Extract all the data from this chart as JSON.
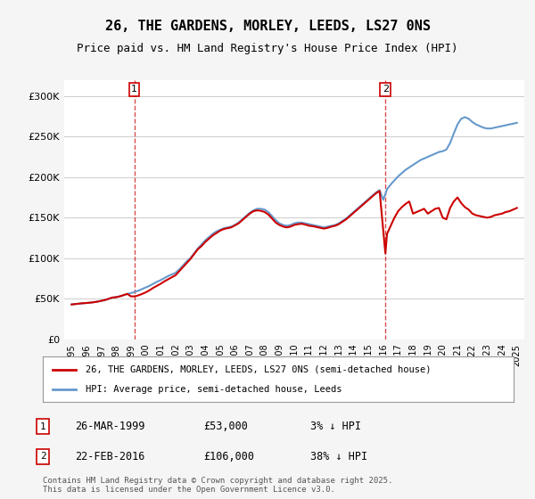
{
  "title": "26, THE GARDENS, MORLEY, LEEDS, LS27 0NS",
  "subtitle": "Price paid vs. HM Land Registry's House Price Index (HPI)",
  "xlabel": "",
  "ylabel": "",
  "ylim": [
    0,
    320000
  ],
  "yticks": [
    0,
    50000,
    100000,
    150000,
    200000,
    250000,
    300000
  ],
  "ytick_labels": [
    "£0",
    "£50K",
    "£100K",
    "£150K",
    "£200K",
    "£250K",
    "£300K"
  ],
  "xlim_start": 1994.5,
  "xlim_end": 2025.5,
  "xticks": [
    1995,
    1996,
    1997,
    1998,
    1999,
    2000,
    2001,
    2002,
    2003,
    2004,
    2005,
    2006,
    2007,
    2008,
    2009,
    2010,
    2011,
    2012,
    2013,
    2014,
    2015,
    2016,
    2017,
    2018,
    2019,
    2020,
    2021,
    2022,
    2023,
    2024,
    2025
  ],
  "property_color": "#cc0000",
  "hpi_color": "#6699cc",
  "marker1_year": 1999.23,
  "marker1_price": 53000,
  "marker2_year": 2016.14,
  "marker2_price": 106000,
  "legend_property": "26, THE GARDENS, MORLEY, LEEDS, LS27 0NS (semi-detached house)",
  "legend_hpi": "HPI: Average price, semi-detached house, Leeds",
  "note1_label": "1",
  "note1_date": "26-MAR-1999",
  "note1_price": "£53,000",
  "note1_hpi": "3% ↓ HPI",
  "note2_label": "2",
  "note2_date": "22-FEB-2016",
  "note2_price": "£106,000",
  "note2_hpi": "38% ↓ HPI",
  "footer": "Contains HM Land Registry data © Crown copyright and database right 2025.\nThis data is licensed under the Open Government Licence v3.0.",
  "background_color": "#f5f5f5",
  "plot_background": "#ffffff",
  "hpi_data_x": [
    1995.0,
    1995.25,
    1995.5,
    1995.75,
    1996.0,
    1996.25,
    1996.5,
    1996.75,
    1997.0,
    1997.25,
    1997.5,
    1997.75,
    1998.0,
    1998.25,
    1998.5,
    1998.75,
    1999.0,
    1999.25,
    1999.5,
    1999.75,
    2000.0,
    2000.25,
    2000.5,
    2000.75,
    2001.0,
    2001.25,
    2001.5,
    2001.75,
    2002.0,
    2002.25,
    2002.5,
    2002.75,
    2003.0,
    2003.25,
    2003.5,
    2003.75,
    2004.0,
    2004.25,
    2004.5,
    2004.75,
    2005.0,
    2005.25,
    2005.5,
    2005.75,
    2006.0,
    2006.25,
    2006.5,
    2006.75,
    2007.0,
    2007.25,
    2007.5,
    2007.75,
    2008.0,
    2008.25,
    2008.5,
    2008.75,
    2009.0,
    2009.25,
    2009.5,
    2009.75,
    2010.0,
    2010.25,
    2010.5,
    2010.75,
    2011.0,
    2011.25,
    2011.5,
    2011.75,
    2012.0,
    2012.25,
    2012.5,
    2012.75,
    2013.0,
    2013.25,
    2013.5,
    2013.75,
    2014.0,
    2014.25,
    2014.5,
    2014.75,
    2015.0,
    2015.25,
    2015.5,
    2015.75,
    2016.0,
    2016.25,
    2016.5,
    2016.75,
    2017.0,
    2017.25,
    2017.5,
    2017.75,
    2018.0,
    2018.25,
    2018.5,
    2018.75,
    2019.0,
    2019.25,
    2019.5,
    2019.75,
    2020.0,
    2020.25,
    2020.5,
    2020.75,
    2021.0,
    2021.25,
    2021.5,
    2021.75,
    2022.0,
    2022.25,
    2022.5,
    2022.75,
    2023.0,
    2023.25,
    2023.5,
    2023.75,
    2024.0,
    2024.25,
    2024.5,
    2024.75,
    2025.0
  ],
  "hpi_data_y": [
    43000,
    43500,
    44000,
    44500,
    44800,
    45200,
    45800,
    46500,
    47500,
    48500,
    50000,
    51500,
    52000,
    53000,
    54500,
    56000,
    57000,
    58500,
    60000,
    62000,
    64000,
    66000,
    68500,
    71000,
    73000,
    75500,
    78000,
    80000,
    82000,
    86000,
    91000,
    96000,
    100000,
    106000,
    112000,
    117000,
    122000,
    126000,
    130000,
    133000,
    135000,
    137000,
    138000,
    139000,
    141000,
    144000,
    148000,
    152000,
    156000,
    159000,
    161000,
    161000,
    160000,
    157000,
    152000,
    147000,
    143000,
    141000,
    140000,
    141000,
    143000,
    144000,
    144000,
    143000,
    142000,
    141000,
    140000,
    139000,
    138000,
    139000,
    140000,
    141000,
    143000,
    146000,
    149000,
    153000,
    157000,
    161000,
    165000,
    169000,
    173000,
    177000,
    181000,
    184000,
    172000,
    185000,
    191000,
    196000,
    201000,
    205000,
    209000,
    212000,
    215000,
    218000,
    221000,
    223000,
    225000,
    227000,
    229000,
    231000,
    232000,
    234000,
    242000,
    254000,
    265000,
    272000,
    274000,
    272000,
    268000,
    265000,
    263000,
    261000,
    260000,
    260000,
    261000,
    262000,
    263000,
    264000,
    265000,
    266000,
    267000
  ],
  "property_data_x": [
    1995.0,
    1995.25,
    1995.5,
    1995.75,
    1996.0,
    1996.25,
    1996.5,
    1996.75,
    1997.0,
    1997.25,
    1997.5,
    1997.75,
    1998.0,
    1998.25,
    1998.5,
    1998.75,
    1999.0,
    1999.25,
    1999.5,
    1999.75,
    2000.0,
    2000.25,
    2000.5,
    2000.75,
    2001.0,
    2001.25,
    2001.5,
    2001.75,
    2002.0,
    2002.25,
    2002.5,
    2002.75,
    2003.0,
    2003.25,
    2003.5,
    2003.75,
    2004.0,
    2004.25,
    2004.5,
    2004.75,
    2005.0,
    2005.25,
    2005.5,
    2005.75,
    2006.0,
    2006.25,
    2006.5,
    2006.75,
    2007.0,
    2007.25,
    2007.5,
    2007.75,
    2008.0,
    2008.25,
    2008.5,
    2008.75,
    2009.0,
    2009.25,
    2009.5,
    2009.75,
    2010.0,
    2010.25,
    2010.5,
    2010.75,
    2011.0,
    2011.25,
    2011.5,
    2011.75,
    2012.0,
    2012.25,
    2012.5,
    2012.75,
    2013.0,
    2013.25,
    2013.5,
    2013.75,
    2014.0,
    2014.25,
    2014.5,
    2014.75,
    2015.0,
    2015.25,
    2015.5,
    2015.75,
    2016.14,
    2016.25,
    2016.5,
    2016.75,
    2017.0,
    2017.25,
    2017.5,
    2017.75,
    2018.0,
    2018.25,
    2018.5,
    2018.75,
    2019.0,
    2019.25,
    2019.5,
    2019.75,
    2020.0,
    2020.25,
    2020.5,
    2020.75,
    2021.0,
    2021.25,
    2021.5,
    2021.75,
    2022.0,
    2022.25,
    2022.5,
    2022.75,
    2023.0,
    2023.25,
    2023.5,
    2023.75,
    2024.0,
    2024.25,
    2024.5,
    2024.75,
    2025.0
  ],
  "property_data_y": [
    43000,
    43500,
    44000,
    44500,
    44800,
    45200,
    45800,
    46500,
    47500,
    48500,
    50000,
    51500,
    52000,
    53000,
    54500,
    56000,
    53000,
    53000,
    54200,
    56000,
    58000,
    60500,
    63500,
    66000,
    68500,
    71500,
    74000,
    76500,
    79000,
    84000,
    89000,
    94000,
    99000,
    105000,
    111000,
    115000,
    120000,
    124000,
    128000,
    131000,
    134000,
    136000,
    137000,
    138000,
    140500,
    143000,
    147000,
    151000,
    155000,
    158000,
    159000,
    158500,
    157000,
    154000,
    149000,
    144000,
    141000,
    139000,
    138000,
    139000,
    141000,
    142000,
    142500,
    141500,
    140000,
    139500,
    138500,
    137500,
    136500,
    137500,
    139000,
    140000,
    142000,
    145000,
    148000,
    152000,
    156000,
    160000,
    164000,
    168000,
    172000,
    176000,
    180000,
    183000,
    106000,
    130000,
    140000,
    150000,
    158000,
    163000,
    167000,
    170000,
    155000,
    157000,
    159000,
    161000,
    155000,
    158000,
    161000,
    162000,
    150000,
    148000,
    162000,
    170000,
    175000,
    168000,
    163000,
    160000,
    155000,
    153000,
    152000,
    151000,
    150000,
    151000,
    153000,
    154000,
    155000,
    157000,
    158000,
    160000,
    162000
  ]
}
